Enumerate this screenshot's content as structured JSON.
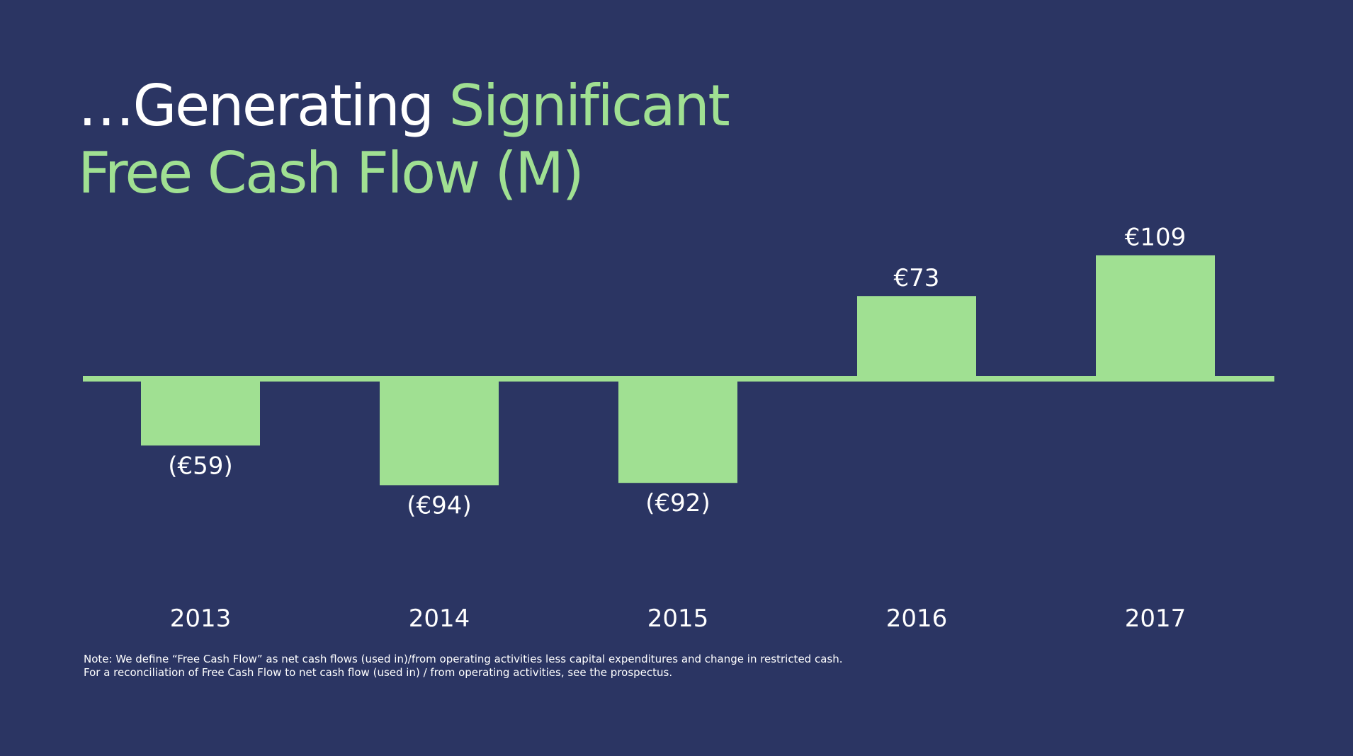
{
  "title": {
    "line1_white": "…Generating",
    "line1_green": "Significant",
    "line2_green": "Free Cash Flow (M)"
  },
  "colors": {
    "background": "#2b3563",
    "accent": "#a0e092",
    "text": "#ffffff"
  },
  "chart_data": {
    "type": "bar",
    "categories": [
      "2013",
      "2014",
      "2015",
      "2016",
      "2017"
    ],
    "values": [
      -59,
      -94,
      -92,
      73,
      109
    ],
    "data_labels": [
      "(€59)",
      "(€94)",
      "(€92)",
      "€73",
      "€109"
    ],
    "title": "…Generating Significant Free Cash Flow (M)",
    "xlabel": "",
    "ylabel": "",
    "ylim": [
      -110,
      120
    ],
    "grid": false,
    "legend": "none",
    "baseline": 0
  },
  "note": {
    "line1": "Note: We define “Free Cash Flow” as net cash flows (used in)/from operating activities less capital expenditures and change in restricted cash.",
    "line2": "For a reconciliation of Free Cash Flow to net cash flow (used in) / from operating activities, see the prospectus."
  }
}
